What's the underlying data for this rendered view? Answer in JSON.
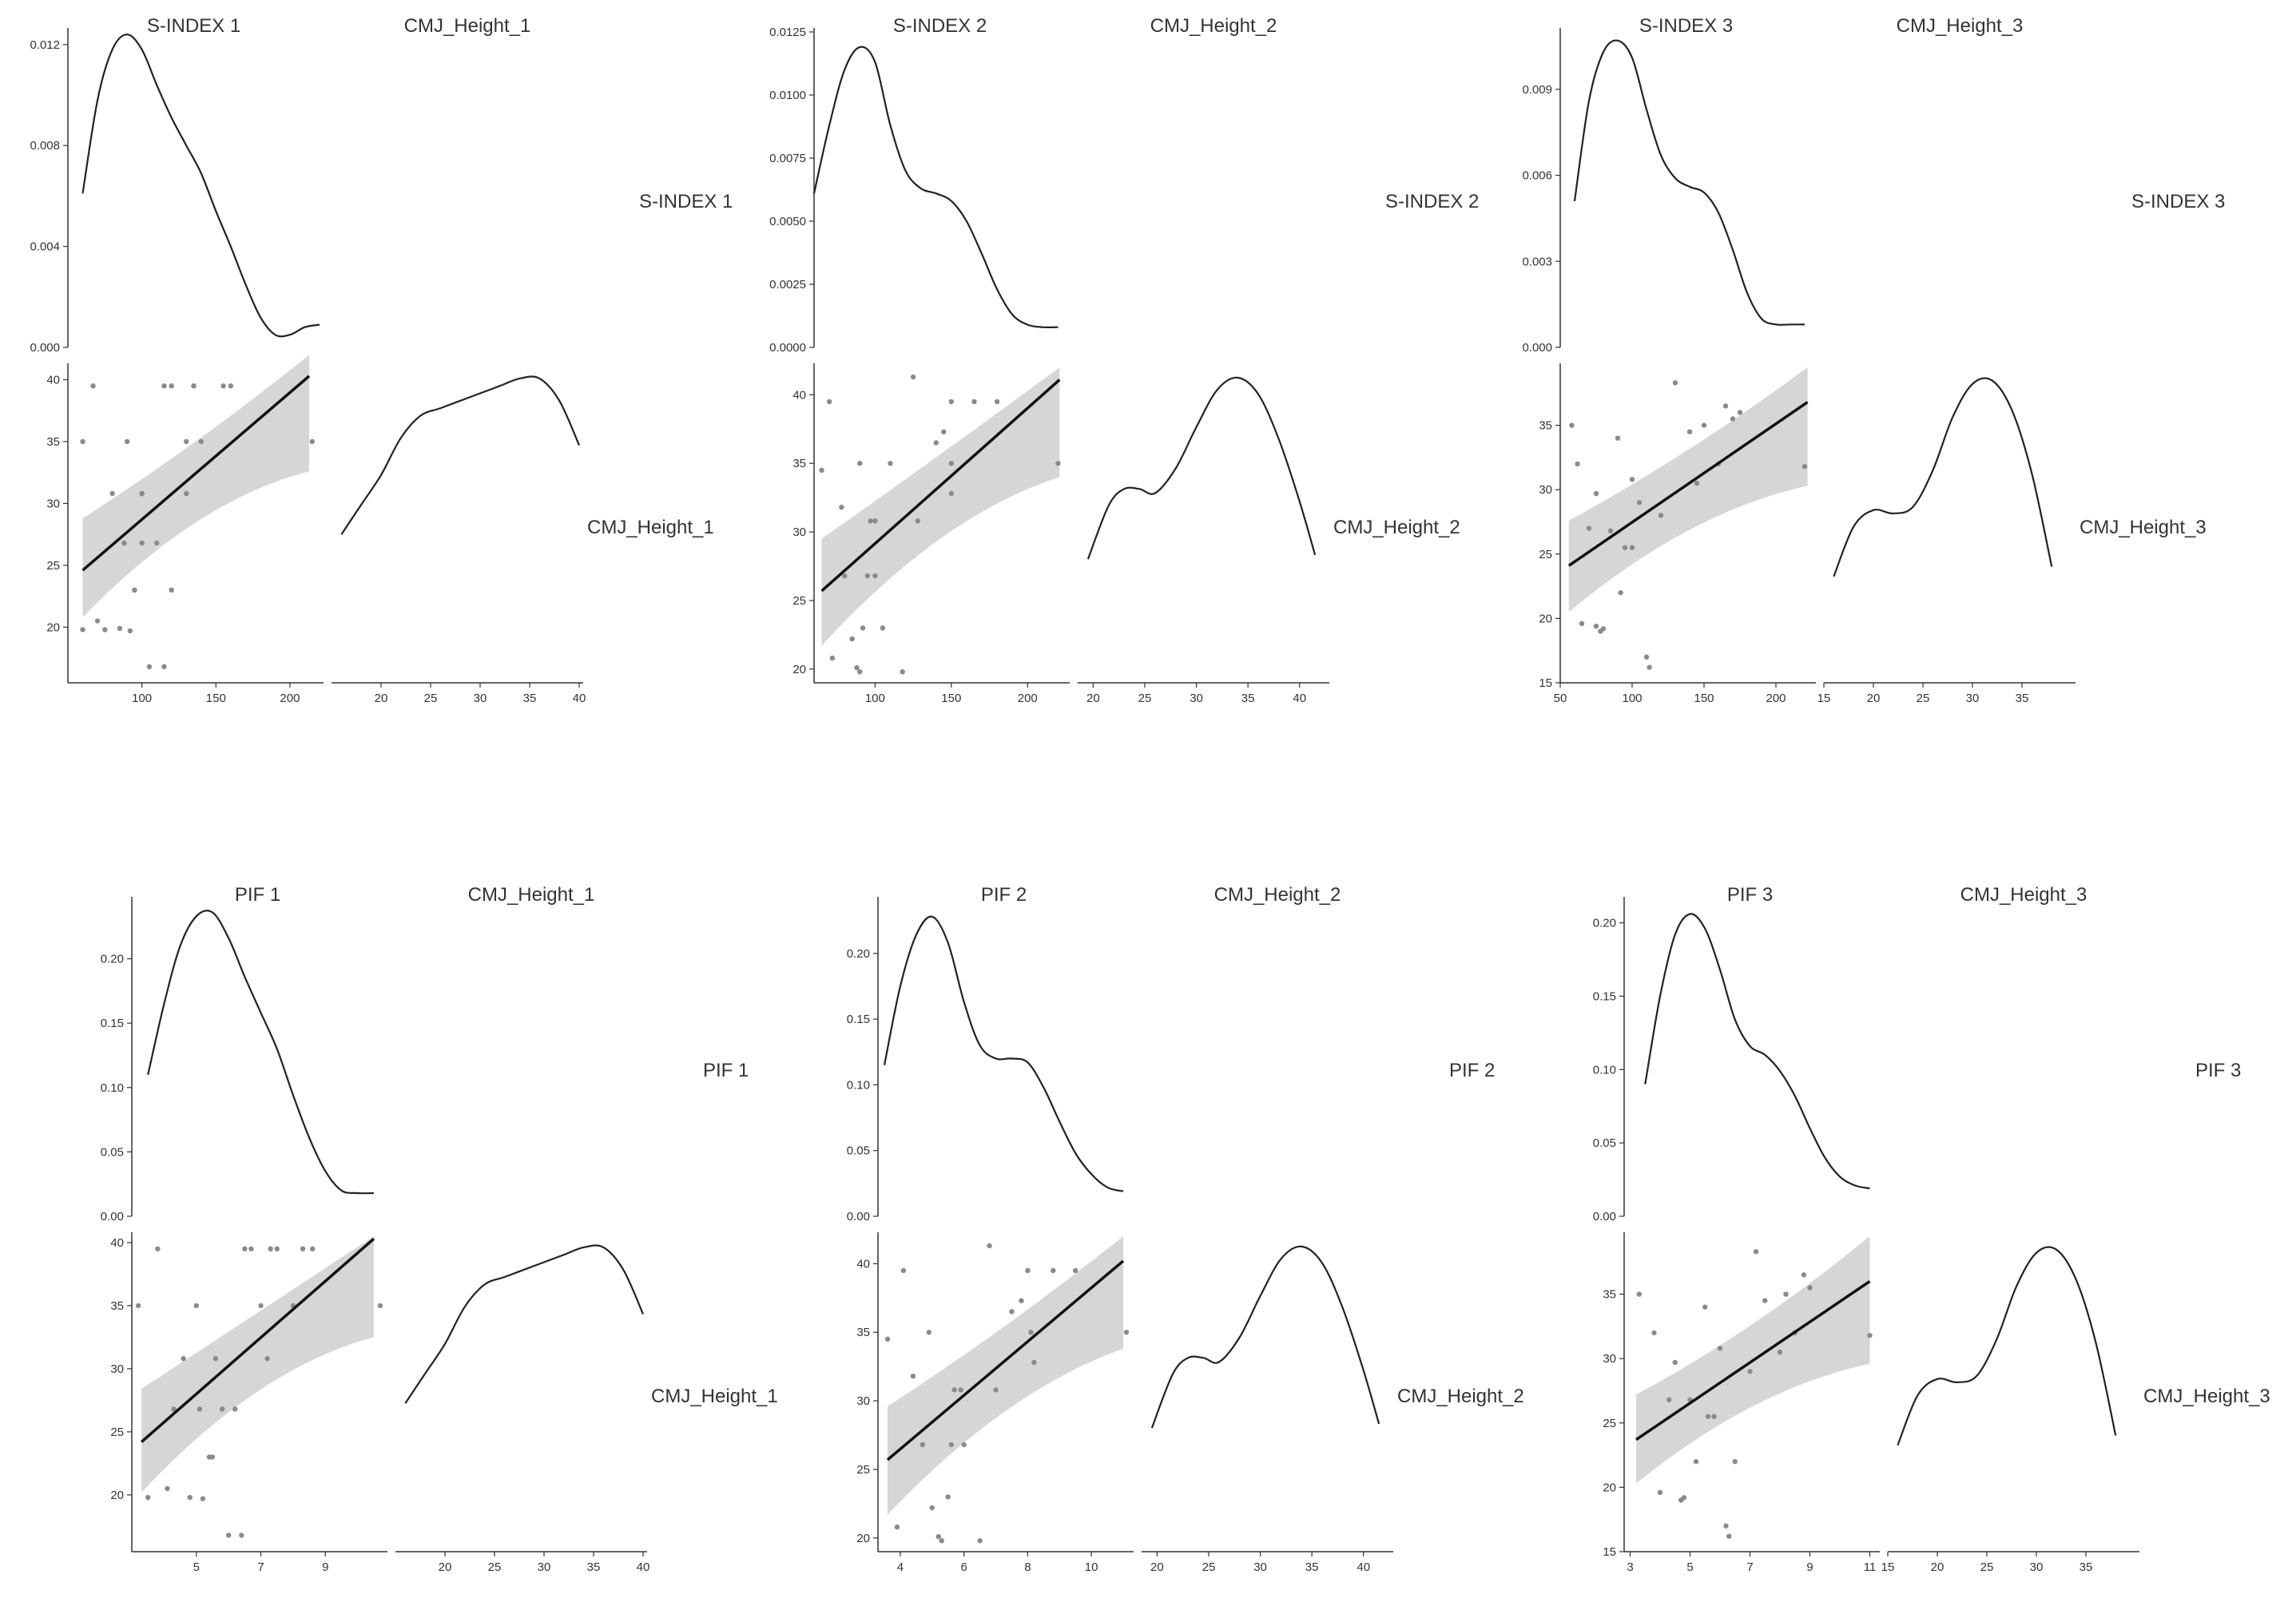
{
  "chart_data": [
    {
      "type": "pairplot",
      "var_x": "S-INDEX 1",
      "var_y": "CMJ_Height_1",
      "density_x": {
        "x": [
          60,
          70,
          80,
          90,
          100,
          110,
          120,
          130,
          140,
          150,
          160,
          170,
          180,
          190,
          200,
          210,
          220
        ],
        "y": [
          0.0061,
          0.0098,
          0.0118,
          0.0124,
          0.0118,
          0.0104,
          0.0091,
          0.008,
          0.0069,
          0.0054,
          0.004,
          0.0025,
          0.0012,
          0.0005,
          0.0005,
          0.0008,
          0.0009
        ],
        "ylim": [
          0,
          0.0125
        ],
        "yticks": [
          "0.000",
          "0.004",
          "0.008",
          "0.012"
        ]
      },
      "scatter": {
        "x": [
          60,
          60,
          67,
          70,
          75,
          80,
          85,
          88,
          90,
          92,
          95,
          95,
          100,
          100,
          100,
          105,
          110,
          115,
          115,
          120,
          120,
          130,
          130,
          135,
          135,
          140,
          155,
          160,
          215
        ],
        "y": [
          19.8,
          35,
          39.5,
          20.5,
          19.8,
          30.8,
          19.9,
          26.8,
          35,
          19.7,
          23,
          23,
          30.8,
          30.8,
          26.8,
          16.8,
          26.8,
          16.8,
          39.5,
          39.5,
          23,
          35,
          30.8,
          39.5,
          39.5,
          35,
          39.5,
          39.5,
          35
        ],
        "xlim": [
          50,
          220
        ],
        "ylim": [
          15.5,
          41
        ],
        "xticks": [
          "100",
          "150",
          "200"
        ],
        "yticks": [
          "20",
          "25",
          "30",
          "35",
          "40"
        ]
      },
      "fit": {
        "x": [
          60,
          213
        ],
        "y": [
          24.6,
          40.3
        ],
        "ci_lower": [
          20.8,
          32.6
        ],
        "ci_upper": [
          28.8,
          42.0
        ]
      },
      "density_y": {
        "x": [
          16,
          18,
          20,
          22,
          24,
          26,
          28,
          30,
          32,
          34,
          36,
          38,
          40
        ],
        "y": [
          0.02,
          0.024,
          0.028,
          0.033,
          0.036,
          0.037,
          0.038,
          0.039,
          0.04,
          0.041,
          0.041,
          0.038,
          0.032
        ],
        "ylim": [
          0,
          0.0425
        ]
      },
      "density_y_xlim": [
        15,
        40
      ],
      "density_y_xticks": [
        "20",
        "25",
        "30",
        "35",
        "40"
      ]
    },
    {
      "type": "pairplot",
      "var_x": "S-INDEX 2",
      "var_y": "CMJ_Height_2",
      "density_x": {
        "x": [
          60,
          70,
          80,
          90,
          100,
          110,
          120,
          130,
          140,
          150,
          160,
          170,
          180,
          190,
          200,
          210,
          220
        ],
        "y": [
          0.0061,
          0.0088,
          0.011,
          0.0119,
          0.0113,
          0.0088,
          0.007,
          0.0063,
          0.0061,
          0.0058,
          0.005,
          0.0037,
          0.0023,
          0.0013,
          0.0009,
          0.0008,
          0.0008
        ],
        "ylim": [
          0,
          0.0125
        ],
        "yticks": [
          "0.0000",
          "0.0025",
          "0.0050",
          "0.0075",
          "0.0100",
          "0.0125"
        ]
      },
      "scatter": {
        "x": [
          65,
          70,
          72,
          78,
          80,
          85,
          88,
          90,
          90,
          92,
          95,
          97,
          100,
          100,
          105,
          110,
          118,
          125,
          128,
          140,
          145,
          150,
          150,
          150,
          165,
          180,
          220
        ],
        "y": [
          34.5,
          39.5,
          20.8,
          31.8,
          26.8,
          22.2,
          20.1,
          19.8,
          35,
          23,
          26.8,
          30.8,
          30.8,
          26.8,
          23,
          35,
          19.8,
          41.3,
          30.8,
          36.5,
          37.3,
          39.5,
          35,
          32.8,
          39.5,
          39.5,
          35
        ],
        "xlim": [
          60,
          225
        ],
        "ylim": [
          19,
          42
        ],
        "xticks": [
          "100",
          "150",
          "200"
        ],
        "yticks": [
          "20",
          "25",
          "30",
          "35",
          "40"
        ]
      },
      "fit": {
        "x": [
          65,
          221
        ],
        "y": [
          25.7,
          41.1
        ],
        "ci_lower": [
          21.7,
          34.0
        ],
        "ci_upper": [
          29.5,
          42.0
        ]
      },
      "density_y": {
        "x": [
          19.5,
          21.5,
          23,
          24.5,
          26,
          28,
          30,
          32,
          34,
          36,
          38,
          40,
          41.5
        ],
        "y": [
          0.03,
          0.043,
          0.047,
          0.047,
          0.046,
          0.052,
          0.062,
          0.071,
          0.074,
          0.07,
          0.059,
          0.044,
          0.031
        ],
        "ylim": [
          0,
          0.0765
        ]
      },
      "density_y_xlim": [
        18.5,
        42.5
      ],
      "density_y_xticks": [
        "20",
        "25",
        "30",
        "35",
        "40"
      ]
    },
    {
      "type": "pairplot",
      "var_x": "S-INDEX 3",
      "var_y": "CMJ_Height_3",
      "density_x": {
        "x": [
          60,
          70,
          80,
          90,
          100,
          110,
          120,
          130,
          140,
          150,
          160,
          170,
          180,
          190,
          200,
          210,
          220
        ],
        "y": [
          0.0051,
          0.0086,
          0.0103,
          0.0107,
          0.0101,
          0.0083,
          0.0067,
          0.0059,
          0.0056,
          0.0054,
          0.0047,
          0.0034,
          0.0019,
          0.001,
          0.0008,
          0.0008,
          0.0008
        ],
        "ylim": [
          0,
          0.011
        ],
        "yticks": [
          "0.000",
          "0.003",
          "0.006",
          "0.009"
        ]
      },
      "scatter": {
        "x": [
          58,
          62,
          65,
          70,
          75,
          75,
          78,
          80,
          85,
          90,
          92,
          95,
          100,
          100,
          105,
          110,
          112,
          120,
          130,
          140,
          145,
          150,
          160,
          165,
          170,
          175,
          220
        ],
        "y": [
          35,
          32,
          19.6,
          27,
          19.4,
          29.7,
          19,
          19.2,
          26.8,
          34,
          22,
          25.5,
          25.5,
          30.8,
          29,
          17,
          16.2,
          28,
          38.3,
          34.5,
          30.5,
          35,
          32,
          36.5,
          35.5,
          36,
          31.8
        ],
        "xlim": [
          50,
          225
        ],
        "ylim": [
          15,
          39.5
        ],
        "xticks": [
          "50",
          "100",
          "150",
          "200"
        ],
        "yticks": [
          "15",
          "20",
          "25",
          "30",
          "35"
        ]
      },
      "fit": {
        "x": [
          56,
          222
        ],
        "y": [
          24.1,
          36.8
        ],
        "ci_lower": [
          20.5,
          30.3
        ],
        "ci_upper": [
          27.6,
          39.5
        ]
      },
      "density_y": {
        "x": [
          16,
          18,
          20,
          22,
          24,
          26,
          28,
          30,
          32,
          34,
          36,
          38
        ],
        "y": [
          0.032,
          0.047,
          0.052,
          0.051,
          0.053,
          0.064,
          0.08,
          0.09,
          0.091,
          0.082,
          0.063,
          0.035
        ],
        "ylim": [
          0,
          0.095
        ]
      },
      "density_y_xlim": [
        15,
        40
      ],
      "density_y_xticks": [
        "15",
        "20",
        "25",
        "30",
        "35"
      ]
    },
    {
      "type": "pairplot",
      "var_x": "PIF 1",
      "var_y": "CMJ_Height_1",
      "density_x": {
        "x": [
          3.5,
          4,
          4.5,
          5,
          5.5,
          6,
          6.5,
          7,
          7.5,
          8,
          8.5,
          9,
          9.5,
          10,
          10.5
        ],
        "y": [
          0.11,
          0.165,
          0.21,
          0.233,
          0.236,
          0.216,
          0.186,
          0.158,
          0.13,
          0.094,
          0.061,
          0.035,
          0.02,
          0.018,
          0.018
        ],
        "ylim": [
          0,
          0.245
        ],
        "yticks": [
          "0.00",
          "0.05",
          "0.10",
          "0.15",
          "0.20"
        ]
      },
      "scatter": {
        "x": [
          3.2,
          3.5,
          3.8,
          4.1,
          4.3,
          4.6,
          4.8,
          5.0,
          5.1,
          5.2,
          5.4,
          5.5,
          5.6,
          5.8,
          6.0,
          6.2,
          6.4,
          6.5,
          6.7,
          7.0,
          7.2,
          7.3,
          7.5,
          8.0,
          8.3,
          8.6,
          10.7
        ],
        "y": [
          35,
          19.8,
          39.5,
          20.5,
          26.8,
          30.8,
          19.8,
          35,
          26.8,
          19.7,
          23,
          23,
          30.8,
          26.8,
          16.8,
          26.8,
          16.8,
          39.5,
          39.5,
          35,
          30.8,
          39.5,
          39.5,
          35,
          39.5,
          39.5,
          35
        ],
        "xlim": [
          3.0,
          10.8
        ],
        "ylim": [
          15.5,
          40.5
        ],
        "xticks": [
          "5",
          "7",
          "9"
        ],
        "yticks": [
          "20",
          "25",
          "30",
          "35",
          "40"
        ]
      },
      "fit": {
        "x": [
          3.3,
          10.5
        ],
        "y": [
          24.2,
          40.3
        ],
        "ci_lower": [
          20.2,
          32.5
        ],
        "ci_upper": [
          28.4,
          40.5
        ]
      },
      "density_y": {
        "x": [
          16,
          18,
          20,
          22,
          24,
          26,
          28,
          30,
          32,
          34,
          36,
          38,
          40
        ],
        "y": [
          0.02,
          0.024,
          0.028,
          0.033,
          0.036,
          0.037,
          0.038,
          0.039,
          0.04,
          0.041,
          0.041,
          0.038,
          0.032
        ],
        "ylim": [
          0,
          0.0425
        ]
      },
      "density_y_xlim": [
        15,
        40
      ],
      "density_y_xticks": [
        "20",
        "25",
        "30",
        "35",
        "40"
      ]
    },
    {
      "type": "pairplot",
      "var_x": "PIF 2",
      "var_y": "CMJ_Height_2",
      "density_x": {
        "x": [
          3.5,
          4,
          4.5,
          5,
          5.5,
          6,
          6.5,
          7,
          7.5,
          8,
          8.5,
          9,
          9.5,
          10,
          10.5,
          11
        ],
        "y": [
          0.115,
          0.175,
          0.214,
          0.228,
          0.208,
          0.163,
          0.13,
          0.12,
          0.12,
          0.117,
          0.098,
          0.072,
          0.048,
          0.032,
          0.022,
          0.019
        ],
        "ylim": [
          0,
          0.24
        ],
        "yticks": [
          "0.00",
          "0.05",
          "0.10",
          "0.15",
          "0.20"
        ]
      },
      "scatter": {
        "x": [
          3.6,
          3.9,
          4.1,
          4.4,
          4.7,
          4.9,
          5.0,
          5.2,
          5.3,
          5.5,
          5.6,
          5.7,
          5.9,
          6.0,
          6.5,
          6.8,
          7.0,
          7.5,
          7.8,
          8.0,
          8.1,
          8.2,
          8.8,
          9.5,
          11.1
        ],
        "y": [
          34.5,
          20.8,
          39.5,
          31.8,
          26.8,
          35,
          22.2,
          20.1,
          19.8,
          23,
          26.8,
          30.8,
          30.8,
          26.8,
          19.8,
          41.3,
          30.8,
          36.5,
          37.3,
          39.5,
          35,
          32.8,
          39.5,
          39.5,
          35
        ],
        "xlim": [
          3.3,
          11.2
        ],
        "ylim": [
          19,
          42
        ],
        "xticks": [
          "4",
          "6",
          "8",
          "10"
        ],
        "yticks": [
          "20",
          "25",
          "30",
          "35",
          "40"
        ]
      },
      "fit": {
        "x": [
          3.6,
          11.0
        ],
        "y": [
          25.7,
          40.2
        ],
        "ci_lower": [
          21.7,
          33.8
        ],
        "ci_upper": [
          29.6,
          42.0
        ]
      },
      "density_y": {
        "x": [
          19.5,
          21.5,
          23,
          24.5,
          26,
          28,
          30,
          32,
          34,
          36,
          38,
          40,
          41.5
        ],
        "y": [
          0.03,
          0.043,
          0.047,
          0.047,
          0.046,
          0.052,
          0.062,
          0.071,
          0.074,
          0.07,
          0.059,
          0.044,
          0.031
        ],
        "ylim": [
          0,
          0.0765
        ]
      },
      "density_y_xlim": [
        18.5,
        42.5
      ],
      "density_y_xticks": [
        "20",
        "25",
        "30",
        "35",
        "40"
      ]
    },
    {
      "type": "pairplot",
      "var_x": "PIF 3",
      "var_y": "CMJ_Height_3",
      "density_x": {
        "x": [
          3.5,
          4,
          4.5,
          5,
          5.5,
          6,
          6.5,
          7,
          7.5,
          8,
          8.5,
          9,
          9.5,
          10,
          10.5,
          11
        ],
        "y": [
          0.09,
          0.15,
          0.192,
          0.206,
          0.196,
          0.168,
          0.134,
          0.116,
          0.11,
          0.099,
          0.082,
          0.06,
          0.04,
          0.027,
          0.021,
          0.019
        ],
        "ylim": [
          0,
          0.215
        ],
        "yticks": [
          "0.00",
          "0.05",
          "0.10",
          "0.15",
          "0.20"
        ]
      },
      "scatter": {
        "x": [
          3.3,
          3.8,
          4.0,
          4.3,
          4.5,
          4.7,
          4.8,
          5.0,
          5.2,
          5.5,
          5.6,
          5.8,
          6.0,
          6.2,
          6.3,
          6.5,
          7.0,
          7.2,
          7.5,
          8.0,
          8.2,
          8.5,
          8.8,
          9.0,
          11.0
        ],
        "y": [
          35,
          32,
          19.6,
          26.8,
          29.7,
          19,
          19.2,
          26.8,
          22,
          34,
          25.5,
          25.5,
          30.8,
          17,
          16.2,
          22,
          29,
          38.3,
          34.5,
          30.5,
          35,
          32,
          36.5,
          35.5,
          31.8
        ],
        "xlim": [
          2.8,
          11.2
        ],
        "ylim": [
          15,
          39.5
        ],
        "xticks": [
          "3",
          "5",
          "7",
          "9",
          "11"
        ],
        "yticks": [
          "15",
          "20",
          "25",
          "30",
          "35"
        ]
      },
      "fit": {
        "x": [
          3.2,
          11.0
        ],
        "y": [
          23.7,
          36.0
        ],
        "ci_lower": [
          20.3,
          29.6
        ],
        "ci_upper": [
          27.2,
          39.5
        ]
      },
      "density_y": {
        "x": [
          16,
          18,
          20,
          22,
          24,
          26,
          28,
          30,
          32,
          34,
          36,
          38
        ],
        "y": [
          0.032,
          0.047,
          0.052,
          0.051,
          0.053,
          0.064,
          0.08,
          0.09,
          0.091,
          0.082,
          0.063,
          0.035
        ],
        "ylim": [
          0,
          0.095
        ]
      },
      "density_y_xlim": [
        15,
        40
      ],
      "density_y_xticks": [
        "15",
        "20",
        "25",
        "30",
        "35"
      ]
    }
  ]
}
